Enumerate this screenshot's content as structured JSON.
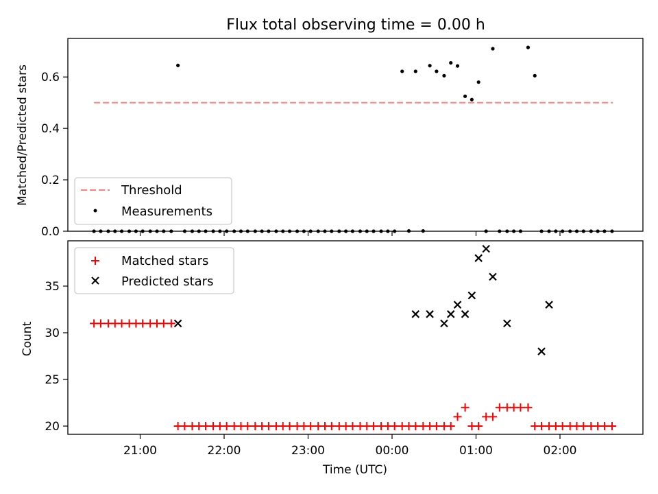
{
  "figure": {
    "title": "Flux total observing time = 0.00 h"
  },
  "chart_data": [
    {
      "type": "scatter",
      "panel": "top",
      "ylabel": "Matched/Predicted stars",
      "xlabel": "",
      "ylim": [
        0,
        0.75
      ],
      "y_ticks": [
        "0.0",
        "0.2",
        "0.4",
        "0.6"
      ],
      "y_tick_values": [
        0.0,
        0.2,
        0.4,
        0.6
      ],
      "x_tick_values": [
        -3,
        -2,
        -1,
        0,
        1,
        2
      ],
      "grid": false,
      "legend_position": "lower-left",
      "threshold": {
        "name": "Threshold",
        "value": 0.5,
        "x_start": -3.55,
        "x_end": 2.63,
        "color": "#ff7f7f"
      },
      "measurements": {
        "name": "Measurements",
        "color": "#000000",
        "x": [
          -3.55,
          -3.47,
          -3.38,
          -3.3,
          -3.22,
          -3.13,
          -3.05,
          -2.97,
          -2.88,
          -2.8,
          -2.72,
          -2.63,
          -2.55,
          -2.47,
          -2.38,
          -2.3,
          -2.22,
          -2.13,
          -2.05,
          -1.97,
          -1.88,
          -1.8,
          -1.72,
          -1.63,
          -1.55,
          -1.47,
          -1.38,
          -1.3,
          -1.22,
          -1.13,
          -1.05,
          -0.97,
          -0.88,
          -0.8,
          -0.72,
          -0.63,
          -0.55,
          -0.47,
          -0.38,
          -0.3,
          -0.22,
          -0.13,
          -0.05,
          0.03,
          0.12,
          0.2,
          0.28,
          0.37,
          0.45,
          0.53,
          0.62,
          0.7,
          0.78,
          0.87,
          0.95,
          1.03,
          1.12,
          1.2,
          1.28,
          1.37,
          1.45,
          1.53,
          1.62,
          1.7,
          1.78,
          1.87,
          1.95,
          2.03,
          2.12,
          2.2,
          2.28,
          2.37,
          2.45,
          2.53,
          2.62
        ],
        "y": [
          0,
          0,
          0,
          0,
          0,
          0,
          0,
          0,
          0,
          0,
          0,
          0,
          0.645,
          0,
          0,
          0,
          0,
          0,
          0,
          0,
          0,
          0,
          0,
          0,
          0,
          0,
          0,
          0,
          0,
          0,
          0,
          0,
          0,
          0,
          0,
          0,
          0,
          0,
          0,
          0,
          0,
          0,
          0,
          0,
          0.622,
          0.001,
          0.622,
          0.001,
          0.644,
          0.622,
          0.605,
          0.655,
          0.643,
          0.525,
          0.512,
          0.58,
          0,
          0.71,
          0,
          0,
          0,
          0,
          0.715,
          0.605,
          0,
          0,
          0,
          0,
          0,
          0,
          0,
          0,
          0,
          0,
          0
        ]
      }
    },
    {
      "type": "scatter",
      "panel": "bottom",
      "xlabel": "Time (UTC)",
      "ylabel": "Count",
      "ylim": [
        19,
        39.6
      ],
      "y_ticks": [
        "20",
        "25",
        "30",
        "35"
      ],
      "y_tick_values": [
        20,
        25,
        30,
        35
      ],
      "x_ticks": [
        "21:00",
        "22:00",
        "23:00",
        "00:00",
        "01:00",
        "02:00"
      ],
      "x_tick_values": [
        -3,
        -2,
        -1,
        0,
        1,
        2
      ],
      "grid": false,
      "legend_position": "upper-left",
      "series": [
        {
          "name": "Matched stars",
          "marker": "+",
          "color": "#ff0000",
          "x": [
            -3.55,
            -3.47,
            -3.38,
            -3.3,
            -3.22,
            -3.13,
            -3.05,
            -2.97,
            -2.88,
            -2.8,
            -2.72,
            -2.63,
            -2.55,
            -2.47,
            -2.38,
            -2.3,
            -2.22,
            -2.13,
            -2.05,
            -1.97,
            -1.88,
            -1.8,
            -1.72,
            -1.63,
            -1.55,
            -1.47,
            -1.38,
            -1.3,
            -1.22,
            -1.13,
            -1.05,
            -0.97,
            -0.88,
            -0.8,
            -0.72,
            -0.63,
            -0.55,
            -0.47,
            -0.38,
            -0.3,
            -0.22,
            -0.13,
            -0.05,
            0.03,
            0.12,
            0.2,
            0.28,
            0.37,
            0.45,
            0.53,
            0.62,
            0.7,
            0.78,
            0.87,
            0.95,
            1.03,
            1.12,
            1.2,
            1.28,
            1.37,
            1.45,
            1.53,
            1.62,
            1.7,
            1.78,
            1.87,
            1.95,
            2.03,
            2.12,
            2.2,
            2.28,
            2.37,
            2.45,
            2.53,
            2.62
          ],
          "y": [
            31,
            31,
            31,
            31,
            31,
            31,
            31,
            31,
            31,
            31,
            31,
            31,
            20,
            20,
            20,
            20,
            20,
            20,
            20,
            20,
            20,
            20,
            20,
            20,
            20,
            20,
            20,
            20,
            20,
            20,
            20,
            20,
            20,
            20,
            20,
            20,
            20,
            20,
            20,
            20,
            20,
            20,
            20,
            20,
            20,
            20,
            20,
            20,
            20,
            20,
            20,
            20,
            21,
            22,
            20,
            20,
            21,
            21,
            22,
            22,
            22,
            22,
            22,
            20,
            20,
            20,
            20,
            20,
            20,
            20,
            20,
            20,
            20,
            20,
            20
          ]
        },
        {
          "name": "Predicted stars",
          "marker": "x",
          "color": "#000000",
          "x": [
            -2.55,
            0.28,
            0.45,
            0.62,
            0.7,
            0.78,
            0.87,
            0.95,
            1.03,
            1.12,
            1.2,
            1.37,
            1.78,
            1.87
          ],
          "y": [
            31,
            32,
            32,
            31,
            32,
            33,
            32,
            34,
            38,
            39,
            36,
            31,
            28,
            33
          ]
        }
      ]
    }
  ]
}
